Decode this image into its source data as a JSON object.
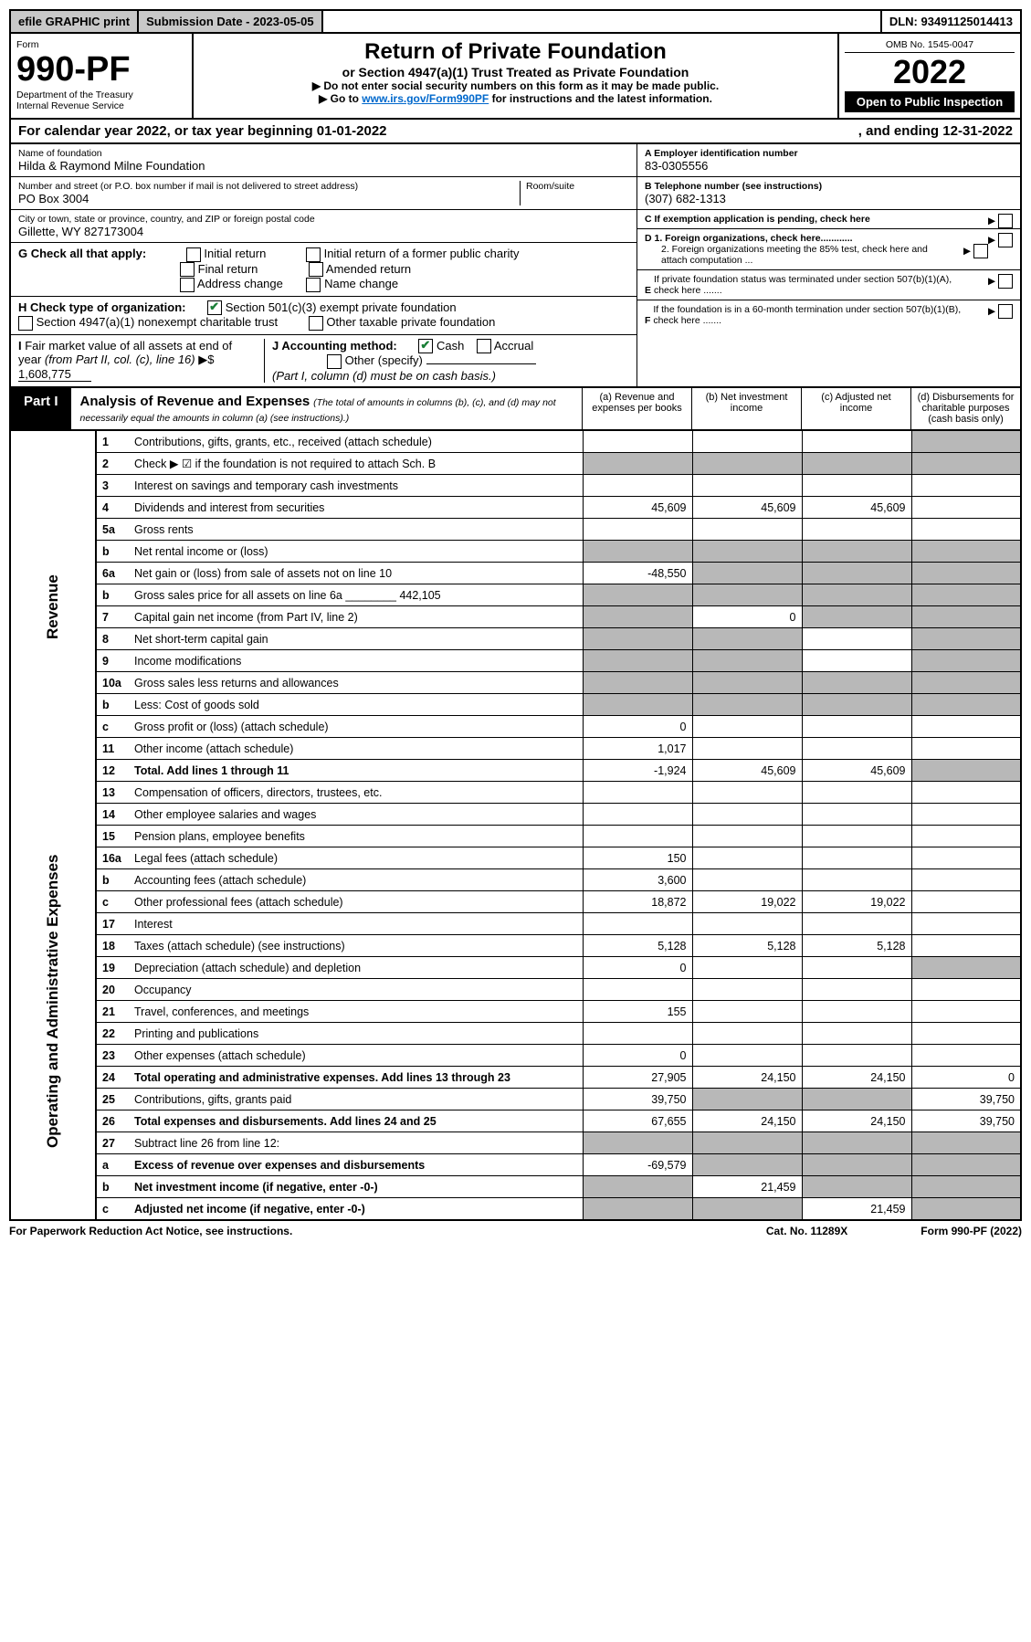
{
  "top": {
    "efile": "efile GRAPHIC print",
    "submission_label": "Submission Date - 2023-05-05",
    "dln": "DLN: 93491125014413"
  },
  "header": {
    "form_label": "Form",
    "form_no": "990-PF",
    "dept": "Department of the Treasury",
    "irs": "Internal Revenue Service",
    "title": "Return of Private Foundation",
    "subtitle": "or Section 4947(a)(1) Trust Treated as Private Foundation",
    "instr1": "▶ Do not enter social security numbers on this form as it may be made public.",
    "instr2": "▶ Go to www.irs.gov/Form990PF for instructions and the latest information.",
    "omb": "OMB No. 1545-0047",
    "year": "2022",
    "open": "Open to Public Inspection"
  },
  "cy": {
    "text": "For calendar year 2022, or tax year beginning 01-01-2022",
    "ending": ", and ending 12-31-2022"
  },
  "id": {
    "name_label": "Name of foundation",
    "name": "Hilda & Raymond Milne Foundation",
    "addr_label": "Number and street (or P.O. box number if mail is not delivered to street address)",
    "addr": "PO Box 3004",
    "room_label": "Room/suite",
    "city_label": "City or town, state or province, country, and ZIP or foreign postal code",
    "city": "Gillette, WY  827173004",
    "A_label": "A Employer identification number",
    "A_val": "83-0305556",
    "B_label": "B Telephone number (see instructions)",
    "B_val": "(307) 682-1313",
    "C_label": "C If exemption application is pending, check here",
    "G_label": "G Check all that apply:",
    "G_opts": [
      "Initial return",
      "Final return",
      "Address change",
      "Initial return of a former public charity",
      "Amended return",
      "Name change"
    ],
    "D1": "D 1. Foreign organizations, check here............",
    "D2": "2. Foreign organizations meeting the 85% test, check here and attach computation ...",
    "E": "E  If private foundation status was terminated under section 507(b)(1)(A), check here .......",
    "H_label": "H Check type of organization:",
    "H1": "Section 501(c)(3) exempt private foundation",
    "H2": "Section 4947(a)(1) nonexempt charitable trust",
    "H3": "Other taxable private foundation",
    "I_label": "I Fair market value of all assets at end of year (from Part II, col. (c), line 16) ▶$ ",
    "I_val": "1,608,775",
    "J_label": "J Accounting method:",
    "J_opts": [
      "Cash",
      "Accrual"
    ],
    "J_other": "Other (specify)",
    "J_note": "(Part I, column (d) must be on cash basis.)",
    "F": "F  If the foundation is in a 60-month termination under section 507(b)(1)(B), check here ......."
  },
  "part1": {
    "tag": "Part I",
    "title": "Analysis of Revenue and Expenses",
    "note": "(The total of amounts in columns (b), (c), and (d) may not necessarily equal the amounts in column (a) (see instructions).)",
    "cols": {
      "a": "(a) Revenue and expenses per books",
      "b": "(b) Net investment income",
      "c": "(c) Adjusted net income",
      "d": "(d) Disbursements for charitable purposes (cash basis only)"
    }
  },
  "side": {
    "rev": "Revenue",
    "exp": "Operating and Administrative Expenses"
  },
  "rows": [
    {
      "n": "1",
      "d": "Contributions, gifts, grants, etc., received (attach schedule)"
    },
    {
      "n": "2",
      "d": "Check ▶ ☑ if the foundation is not required to attach Sch. B"
    },
    {
      "n": "3",
      "d": "Interest on savings and temporary cash investments"
    },
    {
      "n": "4",
      "d": "Dividends and interest from securities",
      "a": "45,609",
      "b": "45,609",
      "c": "45,609"
    },
    {
      "n": "5a",
      "d": "Gross rents"
    },
    {
      "n": "b",
      "d": "Net rental income or (loss)"
    },
    {
      "n": "6a",
      "d": "Net gain or (loss) from sale of assets not on line 10",
      "a": "-48,550"
    },
    {
      "n": "b",
      "d": "Gross sales price for all assets on line 6a ________ 442,105"
    },
    {
      "n": "7",
      "d": "Capital gain net income (from Part IV, line 2)",
      "b": "0"
    },
    {
      "n": "8",
      "d": "Net short-term capital gain"
    },
    {
      "n": "9",
      "d": "Income modifications"
    },
    {
      "n": "10a",
      "d": "Gross sales less returns and allowances"
    },
    {
      "n": "b",
      "d": "Less: Cost of goods sold"
    },
    {
      "n": "c",
      "d": "Gross profit or (loss) (attach schedule)",
      "a": "0"
    },
    {
      "n": "11",
      "d": "Other income (attach schedule)",
      "a": "1,017"
    },
    {
      "n": "12",
      "d": "Total. Add lines 1 through 11",
      "a": "-1,924",
      "b": "45,609",
      "c": "45,609",
      "bold": true
    }
  ],
  "exp_rows": [
    {
      "n": "13",
      "d": "Compensation of officers, directors, trustees, etc."
    },
    {
      "n": "14",
      "d": "Other employee salaries and wages"
    },
    {
      "n": "15",
      "d": "Pension plans, employee benefits"
    },
    {
      "n": "16a",
      "d": "Legal fees (attach schedule)",
      "a": "150"
    },
    {
      "n": "b",
      "d": "Accounting fees (attach schedule)",
      "a": "3,600"
    },
    {
      "n": "c",
      "d": "Other professional fees (attach schedule)",
      "a": "18,872",
      "b": "19,022",
      "c": "19,022"
    },
    {
      "n": "17",
      "d": "Interest"
    },
    {
      "n": "18",
      "d": "Taxes (attach schedule) (see instructions)",
      "a": "5,128",
      "b": "5,128",
      "c": "5,128"
    },
    {
      "n": "19",
      "d": "Depreciation (attach schedule) and depletion",
      "a": "0"
    },
    {
      "n": "20",
      "d": "Occupancy"
    },
    {
      "n": "21",
      "d": "Travel, conferences, and meetings",
      "a": "155"
    },
    {
      "n": "22",
      "d": "Printing and publications"
    },
    {
      "n": "23",
      "d": "Other expenses (attach schedule)",
      "a": "0"
    },
    {
      "n": "24",
      "d": "Total operating and administrative expenses. Add lines 13 through 23",
      "a": "27,905",
      "b": "24,150",
      "c": "24,150",
      "dd": "0",
      "bold": true
    },
    {
      "n": "25",
      "d": "Contributions, gifts, grants paid",
      "a": "39,750",
      "dd": "39,750"
    },
    {
      "n": "26",
      "d": "Total expenses and disbursements. Add lines 24 and 25",
      "a": "67,655",
      "b": "24,150",
      "c": "24,150",
      "dd": "39,750",
      "bold": true
    },
    {
      "n": "27",
      "d": "Subtract line 26 from line 12:"
    },
    {
      "n": "a",
      "d": "Excess of revenue over expenses and disbursements",
      "a": "-69,579",
      "bold": true
    },
    {
      "n": "b",
      "d": "Net investment income (if negative, enter -0-)",
      "b": "21,459",
      "bold": true
    },
    {
      "n": "c",
      "d": "Adjusted net income (if negative, enter -0-)",
      "c": "21,459",
      "bold": true
    }
  ],
  "grey": {
    "rev": {
      "1": [
        "d"
      ],
      "2": [
        "a",
        "b",
        "c",
        "d"
      ],
      "5b": [
        "a",
        "b",
        "c",
        "d"
      ],
      "6a": [
        "b",
        "c",
        "d"
      ],
      "6b": [
        "a",
        "b",
        "c",
        "d"
      ],
      "7": [
        "a",
        "c",
        "d"
      ],
      "8": [
        "a",
        "b",
        "d"
      ],
      "9": [
        "a",
        "b",
        "d"
      ],
      "10a": [
        "a",
        "b",
        "c",
        "d"
      ],
      "10b": [
        "a",
        "b",
        "c",
        "d"
      ],
      "12": [
        "d"
      ]
    },
    "exp": {
      "19": [
        "d"
      ],
      "25": [
        "b",
        "c"
      ],
      "27": [
        "a",
        "b",
        "c",
        "d"
      ],
      "27a": [
        "b",
        "c",
        "d"
      ],
      "27b": [
        "a",
        "c",
        "d"
      ],
      "27c": [
        "a",
        "b",
        "d"
      ]
    }
  },
  "footer": {
    "pra": "For Paperwork Reduction Act Notice, see instructions.",
    "cat": "Cat. No. 11289X",
    "form": "Form 990-PF (2022)"
  }
}
